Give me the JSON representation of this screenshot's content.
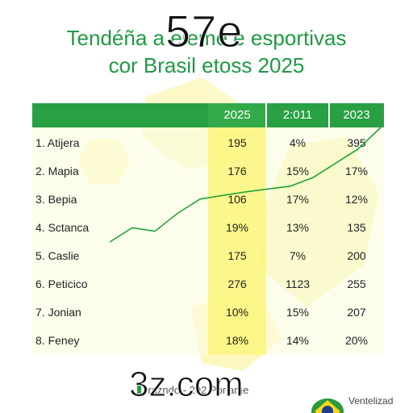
{
  "title": {
    "line1": "Tendéña a eleme    e esportivas",
    "line2": "cor Brasil etoss 2025"
  },
  "overlay_text": "57e",
  "watermark": "3z.com",
  "footer": {
    "source": "-razndo - 202  Poriame",
    "logo_text": "Ventelizad"
  },
  "colors": {
    "accent": "#29a043",
    "title": "#1f9a45",
    "highlight": "#faf46e",
    "trend_line": "#22a33a"
  },
  "chart_data": {
    "type": "table",
    "columns": [
      "2025",
      "2:011",
      "2023"
    ],
    "rows": [
      {
        "name": "1. Atijera",
        "values": [
          "195",
          "4%",
          "395"
        ]
      },
      {
        "name": "2. Mapia",
        "values": [
          "176",
          "15%",
          "17%"
        ]
      },
      {
        "name": "3. Bepia",
        "values": [
          "106",
          "17%",
          "12%"
        ]
      },
      {
        "name": "4. Sctanca",
        "values": [
          "19%",
          "13%",
          "135"
        ]
      },
      {
        "name": "5. Caslie",
        "values": [
          "175",
          "7%",
          "200"
        ]
      },
      {
        "name": "6. Peticico",
        "values": [
          "276",
          "1123",
          "255"
        ]
      },
      {
        "name": "7. Jonian",
        "values": [
          "10%",
          "15%",
          "207"
        ]
      },
      {
        "name": "8. Feney",
        "values": [
          "18%",
          "14%",
          "20%"
        ]
      }
    ],
    "highlighted_column": "2025",
    "trend_line": {
      "type": "line",
      "y": [
        0,
        2,
        1.5,
        4,
        6,
        6.5,
        7,
        7.4,
        7.8,
        9,
        11,
        13,
        16
      ]
    }
  }
}
